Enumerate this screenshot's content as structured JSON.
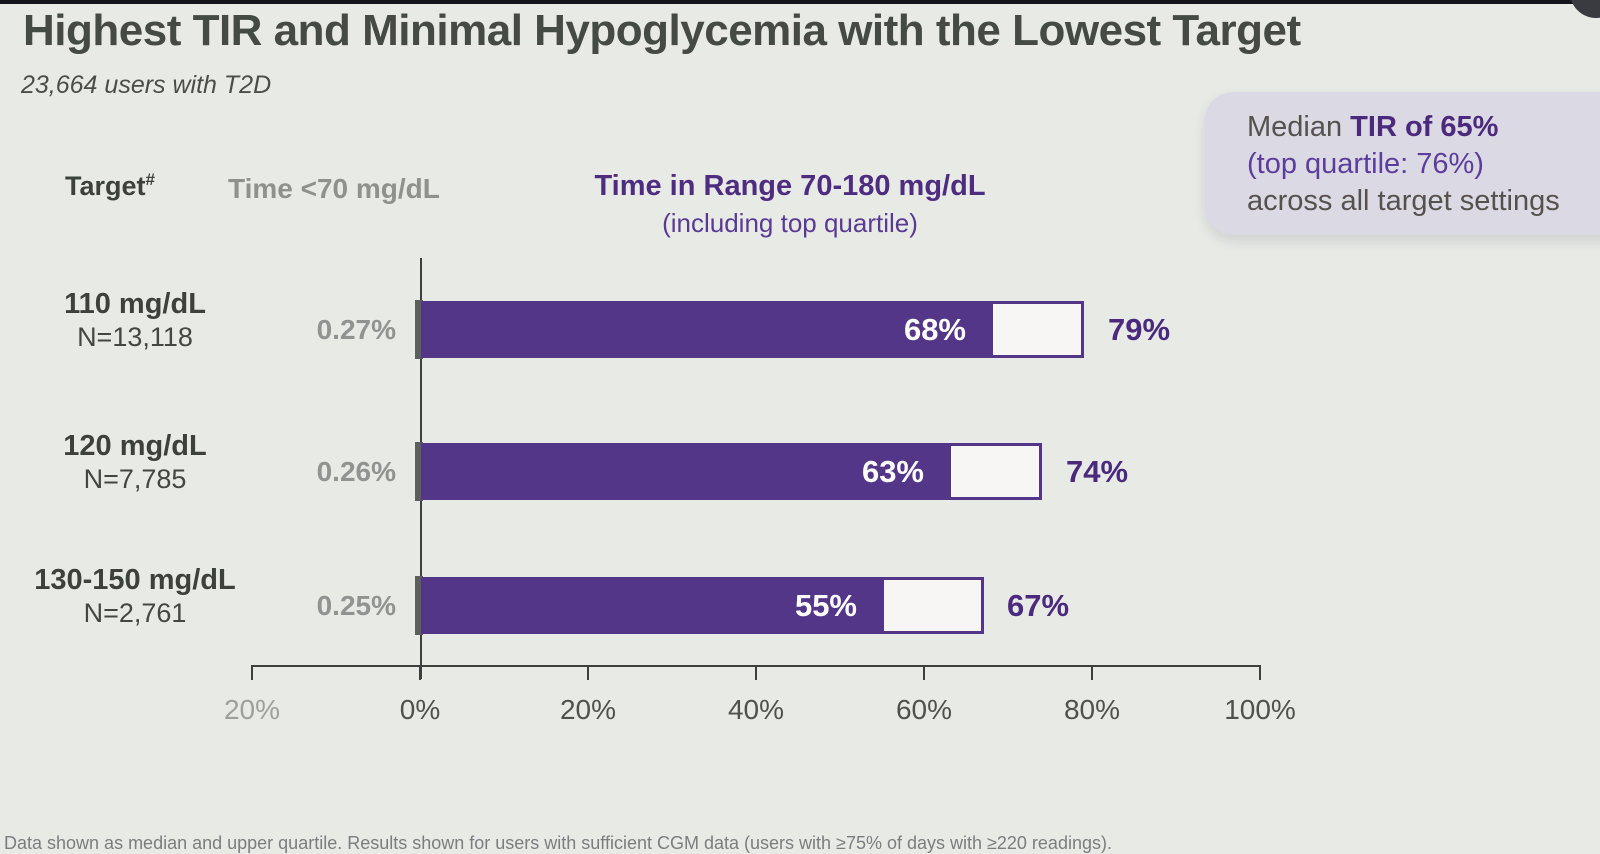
{
  "page": {
    "title": "Highest TIR and Minimal Hypoglycemia with the Lowest Target",
    "subtitle": "23,664 users with T2D",
    "footnote": "Data shown as median and upper quartile. Results shown for users with sufficient CGM data (users with ≥75% of days with ≥220 readings)."
  },
  "callout": {
    "line1_prefix": "Median ",
    "line1_bold": "TIR of 65%",
    "line2": "(top quartile: 76%)",
    "line3": "across all target settings"
  },
  "columns": {
    "target_label": "Target",
    "target_superscript": "#",
    "hypo_label": "Time <70 mg/dL",
    "tir_label": "Time in Range 70-180 mg/dL",
    "tir_sublabel": "(including top quartile)"
  },
  "chart_data": {
    "type": "bar",
    "orientation": "horizontal",
    "title": "Time in Range 70-180 mg/dL (including top quartile)",
    "categories": [
      "110 mg/dL",
      "120 mg/dL",
      "130-150 mg/dL"
    ],
    "category_sublabels": [
      "N=13,118",
      "N=7,785",
      "N=2,761"
    ],
    "series": [
      {
        "name": "Time <70 mg/dL (median)",
        "values": [
          0.27,
          0.26,
          0.25
        ],
        "labels": [
          "0.27%",
          "0.26%",
          "0.25%"
        ]
      },
      {
        "name": "Time in Range 70-180 mg/dL (median)",
        "values": [
          68,
          63,
          55
        ],
        "labels": [
          "68%",
          "63%",
          "55%"
        ]
      },
      {
        "name": "Time in Range 70-180 mg/dL (top quartile)",
        "values": [
          79,
          74,
          67
        ],
        "labels": [
          "79%",
          "74%",
          "67%"
        ]
      }
    ],
    "x_ticks": [
      {
        "label": "20%",
        "value": -20
      },
      {
        "label": "0%",
        "value": 0
      },
      {
        "label": "20%",
        "value": 20
      },
      {
        "label": "40%",
        "value": 40
      },
      {
        "label": "60%",
        "value": 60
      },
      {
        "label": "80%",
        "value": 80
      },
      {
        "label": "100%",
        "value": 100
      }
    ],
    "xlim": [
      -20,
      100
    ],
    "grid": false,
    "legend": false
  },
  "colors": {
    "background": "#e8eae6",
    "bar_purple": "#543689",
    "deep_purple_text": "#4b2a7d",
    "light_purple_text": "#5d3d9c",
    "gray_text": "#8e918c",
    "dark_text": "#3d413c",
    "callout_bg": "#dbd9e3",
    "hypo_bar_gray": "#5c5f5c",
    "axis": "#3c3f3b"
  }
}
